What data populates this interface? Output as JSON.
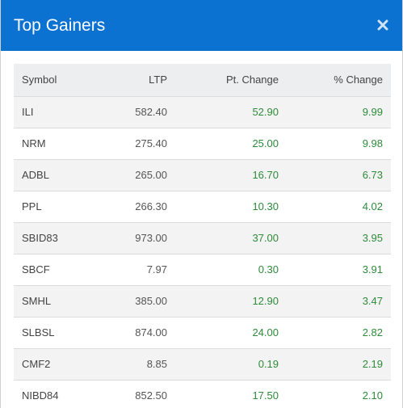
{
  "header": {
    "title": "Top Gainers",
    "close_icon": "close-icon",
    "color": "#0b72d2"
  },
  "table": {
    "columns": [
      "Symbol",
      "LTP",
      "Pt. Change",
      "% Change"
    ],
    "rows": [
      {
        "symbol": "ILI",
        "ltp": "582.40",
        "pt_change": "52.90",
        "pct_change": "9.99"
      },
      {
        "symbol": "NRM",
        "ltp": "275.40",
        "pt_change": "25.00",
        "pct_change": "9.98"
      },
      {
        "symbol": "ADBL",
        "ltp": "265.00",
        "pt_change": "16.70",
        "pct_change": "6.73"
      },
      {
        "symbol": "PPL",
        "ltp": "266.30",
        "pt_change": "10.30",
        "pct_change": "4.02"
      },
      {
        "symbol": "SBID83",
        "ltp": "973.00",
        "pt_change": "37.00",
        "pct_change": "3.95"
      },
      {
        "symbol": "SBCF",
        "ltp": "7.97",
        "pt_change": "0.30",
        "pct_change": "3.91"
      },
      {
        "symbol": "SMHL",
        "ltp": "385.00",
        "pt_change": "12.90",
        "pct_change": "3.47"
      },
      {
        "symbol": "SLBSL",
        "ltp": "874.00",
        "pt_change": "24.00",
        "pct_change": "2.82"
      },
      {
        "symbol": "CMF2",
        "ltp": "8.85",
        "pt_change": "0.19",
        "pct_change": "2.19"
      },
      {
        "symbol": "NIBD84",
        "ltp": "852.50",
        "pt_change": "17.50",
        "pct_change": "2.10"
      }
    ],
    "gain_color": "#2e8b3a"
  }
}
